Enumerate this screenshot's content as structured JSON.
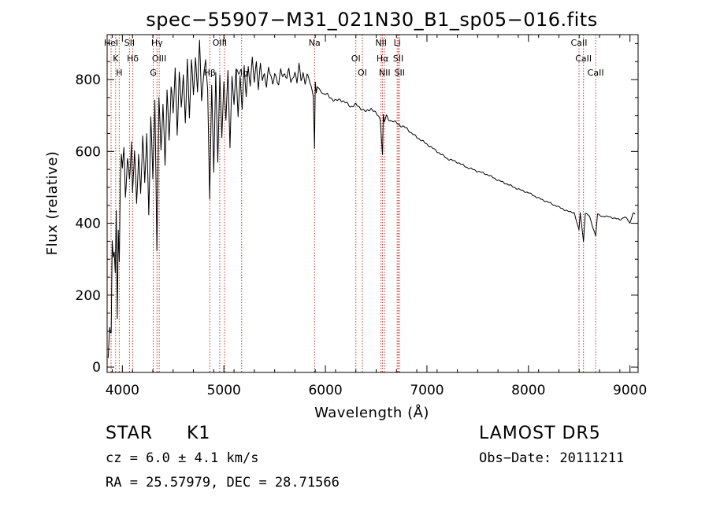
{
  "chart_data": {
    "type": "line",
    "title": "spec−55907−M31_021N30_B1_sp05−016.fits",
    "xlabel": "Wavelength (Å)",
    "ylabel": "Flux (relative)",
    "xlim": [
      3850,
      9080
    ],
    "ylim": [
      -15,
      925
    ],
    "xticks": [
      4000,
      5000,
      6000,
      7000,
      8000,
      9000
    ],
    "yticks": [
      0,
      200,
      400,
      600,
      800
    ],
    "grid": false,
    "series": [
      {
        "x": [
          3860,
          3875,
          3890,
          3900,
          3910,
          3920,
          3930,
          3940,
          3950,
          3960,
          3970,
          3980,
          3990,
          4000,
          4015,
          4030,
          4050,
          4070,
          4090,
          4100,
          4120,
          4140,
          4160,
          4180,
          4200,
          4220,
          4240,
          4260,
          4280,
          4300,
          4320,
          4340,
          4360,
          4380,
          4400,
          4420,
          4440,
          4460,
          4480,
          4500,
          4520,
          4540,
          4560,
          4580,
          4600,
          4620,
          4640,
          4660,
          4680,
          4700,
          4720,
          4740,
          4760,
          4780,
          4800,
          4820,
          4840,
          4860,
          4880,
          4900,
          4920,
          4940,
          4960,
          4980,
          5000,
          5020,
          5040,
          5060,
          5080,
          5100,
          5120,
          5140,
          5160,
          5180,
          5200,
          5220,
          5240,
          5260,
          5280,
          5300,
          5320,
          5340,
          5360,
          5380,
          5400,
          5420,
          5440,
          5460,
          5480,
          5500,
          5520,
          5540,
          5560,
          5580,
          5600,
          5620,
          5640,
          5660,
          5680,
          5700,
          5720,
          5740,
          5760,
          5780,
          5800,
          5820,
          5840,
          5860,
          5880,
          5893,
          5900,
          5910,
          5920,
          5940,
          5960,
          5980,
          6000,
          6050,
          6100,
          6150,
          6200,
          6250,
          6300,
          6350,
          6400,
          6450,
          6500,
          6520,
          6540,
          6563,
          6570,
          6580,
          6600,
          6620,
          6650,
          6700,
          6750,
          6800,
          6850,
          6900,
          6950,
          7000,
          7050,
          7100,
          7150,
          7200,
          7300,
          7400,
          7500,
          7600,
          7700,
          7800,
          7900,
          8000,
          8100,
          8200,
          8300,
          8400,
          8450,
          8498,
          8510,
          8542,
          8560,
          8600,
          8662,
          8680,
          8720,
          8800,
          8850,
          8900,
          8950,
          8990,
          9000,
          9030,
          9050
        ],
        "y": [
          20,
          130,
          100,
          340,
          300,
          320,
          250,
          420,
          140,
          400,
          300,
          520,
          600,
          560,
          590,
          470,
          580,
          540,
          620,
          470,
          600,
          450,
          610,
          480,
          640,
          500,
          660,
          430,
          700,
          510,
          740,
          330,
          760,
          600,
          720,
          560,
          780,
          640,
          770,
          700,
          830,
          660,
          820,
          720,
          800,
          690,
          860,
          700,
          840,
          760,
          860,
          780,
          900,
          740,
          800,
          870,
          770,
          470,
          770,
          550,
          820,
          580,
          800,
          640,
          790,
          700,
          820,
          610,
          800,
          740,
          830,
          700,
          800,
          720,
          840,
          760,
          830,
          780,
          860,
          800,
          850,
          770,
          840,
          800,
          820,
          780,
          830,
          810,
          790,
          820,
          800,
          780,
          830,
          810,
          820,
          800,
          830,
          790,
          810,
          820,
          790,
          840,
          800,
          820,
          790,
          810,
          800,
          780,
          760,
          610,
          790,
          760,
          780,
          770,
          770,
          760,
          760,
          750,
          740,
          745,
          735,
          725,
          730,
          720,
          710,
          720,
          705,
          700,
          690,
          590,
          700,
          680,
          700,
          690,
          685,
          680,
          670,
          665,
          650,
          640,
          630,
          620,
          610,
          600,
          590,
          580,
          570,
          555,
          545,
          535,
          520,
          508,
          495,
          485,
          470,
          458,
          445,
          432,
          430,
          380,
          430,
          350,
          428,
          420,
          365,
          425,
          420,
          418,
          414,
          410,
          418,
          405,
          400,
          430,
          425
        ]
      }
    ],
    "line_markers": [
      {
        "w": 3889,
        "labels": [
          "HeI"
        ]
      },
      {
        "w": 3934,
        "labels": [
          "K"
        ]
      },
      {
        "w": 3969,
        "labels": [
          "H"
        ]
      },
      {
        "w": 4070,
        "labels": [
          "SII"
        ]
      },
      {
        "w": 4102,
        "labels": [
          "Hδ"
        ]
      },
      {
        "w": 4304,
        "labels": [
          "G"
        ]
      },
      {
        "w": 4341,
        "labels": [
          "Hγ"
        ]
      },
      {
        "w": 4363,
        "labels": [
          "OIII"
        ]
      },
      {
        "w": 4861,
        "labels": [
          "Hβ"
        ]
      },
      {
        "w": 4959,
        "labels": [
          "OIII"
        ]
      },
      {
        "w": 5007,
        "labels": []
      },
      {
        "w": 5175,
        "labels": [
          "Mg"
        ]
      },
      {
        "w": 5893,
        "labels": [
          "Na"
        ]
      },
      {
        "w": 6300,
        "labels": [
          "OI"
        ]
      },
      {
        "w": 6364,
        "labels": [
          "OI"
        ]
      },
      {
        "w": 6548,
        "labels": [
          "NII"
        ]
      },
      {
        "w": 6563,
        "labels": [
          "Hα"
        ]
      },
      {
        "w": 6583,
        "labels": [
          "NII"
        ]
      },
      {
        "w": 6707,
        "labels": [
          "Li"
        ]
      },
      {
        "w": 6717,
        "labels": [
          "SII"
        ]
      },
      {
        "w": 6731,
        "labels": [
          "SII"
        ]
      },
      {
        "w": 8498,
        "labels": [
          "CaII"
        ]
      },
      {
        "w": 8542,
        "labels": [
          "CaII"
        ]
      },
      {
        "w": 8662,
        "labels": [
          "CaII"
        ]
      }
    ]
  },
  "info": {
    "class": "STAR",
    "subclass": "K1",
    "cz": "cz = 6.0 ± 4.1 km/s",
    "radec": "RA =  25.57979, DEC =  28.71566",
    "survey": "LAMOST DR5",
    "obsdate": "Obs−Date: 20111211"
  },
  "colors": {
    "spectrum": "#000000",
    "line_marker": "#c0392b",
    "axes": "#000000"
  }
}
